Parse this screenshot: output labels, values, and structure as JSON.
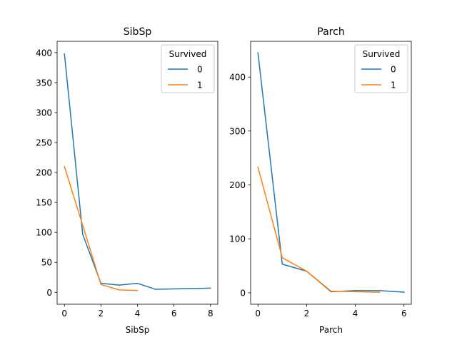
{
  "chart_data": [
    {
      "type": "line",
      "title": "SibSp",
      "xlabel": "SibSp",
      "ylabel": "",
      "xlim": [
        -0.4,
        8.4
      ],
      "ylim": [
        -19.9,
        418.9
      ],
      "xticks": [
        0,
        2,
        4,
        6,
        8
      ],
      "yticks": [
        0,
        50,
        100,
        150,
        200,
        250,
        300,
        350,
        400
      ],
      "legend": {
        "title": "Survived",
        "position": "top-right"
      },
      "series": [
        {
          "name": "0",
          "color": "#1f77b4",
          "x": [
            0,
            1,
            2,
            3,
            4,
            5,
            8
          ],
          "y": [
            398,
            97,
            15,
            12,
            15,
            5,
            7
          ]
        },
        {
          "name": "1",
          "color": "#ff7f0e",
          "x": [
            0,
            1,
            2,
            3,
            4
          ],
          "y": [
            210,
            112,
            13,
            4,
            3
          ]
        }
      ]
    },
    {
      "type": "line",
      "title": "Parch",
      "xlabel": "Parch",
      "ylabel": "",
      "xlim": [
        -0.3,
        6.3
      ],
      "ylim": [
        -21.3,
        466.3
      ],
      "xticks": [
        0,
        2,
        4,
        6
      ],
      "yticks": [
        0,
        100,
        200,
        300,
        400
      ],
      "legend": {
        "title": "Survived",
        "position": "top-right"
      },
      "series": [
        {
          "name": "0",
          "color": "#1f77b4",
          "x": [
            0,
            1,
            2,
            3,
            4,
            5,
            6
          ],
          "y": [
            445,
            53,
            40,
            2,
            4,
            4,
            1
          ]
        },
        {
          "name": "1",
          "color": "#ff7f0e",
          "x": [
            0,
            1,
            2,
            3,
            5
          ],
          "y": [
            233,
            65,
            40,
            3,
            1
          ]
        }
      ]
    }
  ]
}
